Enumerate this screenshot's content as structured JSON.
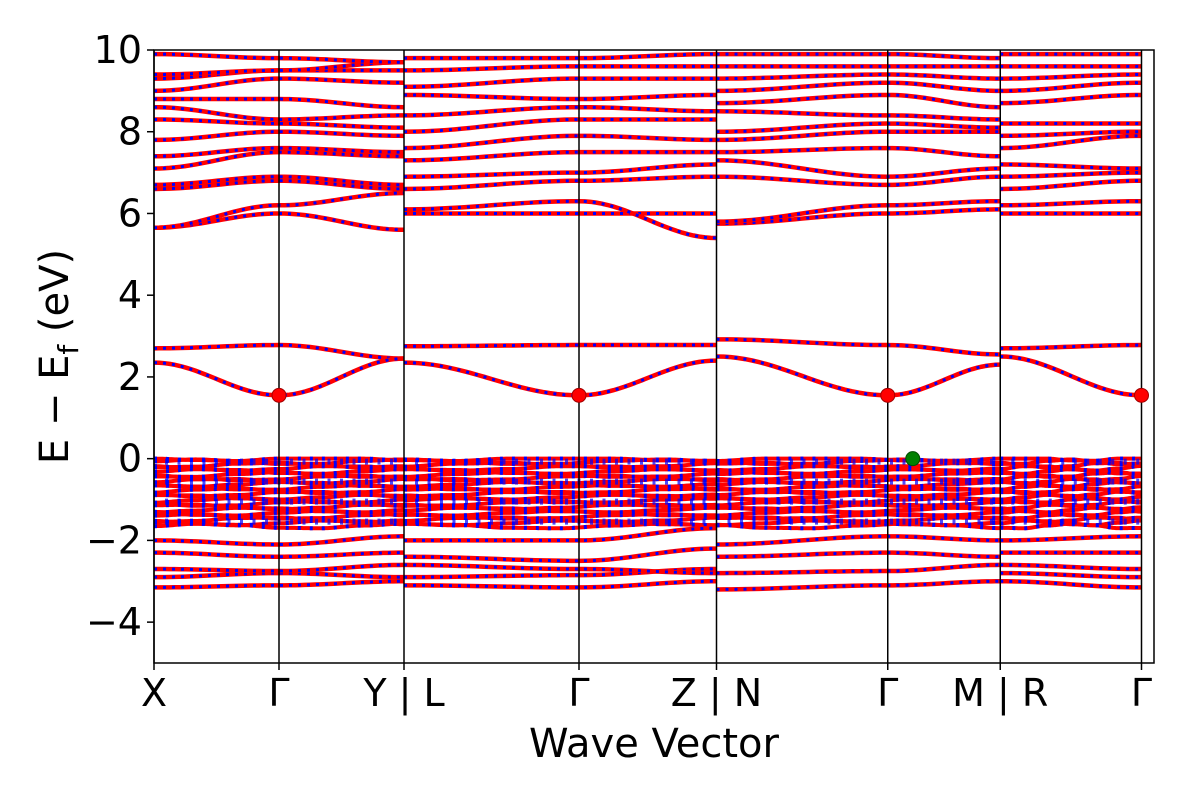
{
  "chart_data": {
    "type": "line",
    "xlabel": "Wave Vector",
    "ylabel_main": "E − E",
    "ylabel_sub": "f",
    "ylabel_unit": " (eV)",
    "ylim": [
      -5,
      10
    ],
    "yticks": [
      {
        "value": 10,
        "label": "10"
      },
      {
        "value": 8,
        "label": "8"
      },
      {
        "value": 6,
        "label": "6"
      },
      {
        "value": 4,
        "label": "4"
      },
      {
        "value": 2,
        "label": "2"
      },
      {
        "value": 0,
        "label": "0"
      },
      {
        "value": -2,
        "label": "−2"
      },
      {
        "value": -4,
        "label": "−4"
      }
    ],
    "xlim": [
      0,
      8
    ],
    "high_symmetry_points": [
      {
        "x": 0,
        "label": "X"
      },
      {
        "x": 1,
        "label": "Γ"
      },
      {
        "x": 2,
        "label": "Y | L"
      },
      {
        "x": 3.4,
        "label": "Γ"
      },
      {
        "x": 4.5,
        "label": "Z | N"
      },
      {
        "x": 5.87,
        "label": "Γ"
      },
      {
        "x": 6.77,
        "label": "M | R"
      },
      {
        "x": 7.9,
        "label": "Γ"
      }
    ],
    "band_colors": {
      "spin_up": "#ff0000",
      "spin_down": "#0000ff"
    },
    "segments": [
      {
        "x": [
          0,
          1,
          2
        ],
        "bands": [
          [
            5.65,
            6.0,
            5.6
          ],
          [
            5.65,
            6.2,
            6.5
          ],
          [
            6.6,
            6.8,
            6.6
          ],
          [
            6.7,
            6.9,
            6.7
          ],
          [
            7.1,
            7.5,
            7.4
          ],
          [
            7.4,
            7.6,
            7.5
          ],
          [
            7.8,
            8.0,
            7.9
          ],
          [
            8.3,
            8.2,
            8.1
          ],
          [
            8.6,
            8.3,
            8.4
          ],
          [
            8.8,
            8.8,
            8.6
          ],
          [
            9.0,
            9.3,
            9.2
          ],
          [
            9.3,
            9.5,
            9.5
          ],
          [
            9.4,
            9.5,
            9.7
          ],
          [
            9.9,
            9.8,
            9.7
          ],
          [
            2.7,
            2.78,
            2.45
          ],
          [
            2.35,
            1.55,
            2.45
          ],
          [
            -3.15,
            -3.1,
            -3.0
          ],
          [
            -2.9,
            -2.8,
            -2.9
          ],
          [
            -2.7,
            -2.75,
            -2.6
          ],
          [
            -2.3,
            -2.4,
            -2.3
          ],
          [
            -2.0,
            -2.1,
            -1.9
          ]
        ]
      },
      {
        "x": [
          2,
          3.4,
          4.5
        ],
        "bands": [
          [
            6.0,
            6.0,
            6.0
          ],
          [
            6.1,
            6.3,
            5.4
          ],
          [
            6.6,
            6.8,
            6.9
          ],
          [
            6.9,
            7.0,
            7.2
          ],
          [
            7.3,
            7.5,
            7.5
          ],
          [
            7.6,
            7.9,
            7.8
          ],
          [
            8.0,
            8.3,
            8.3
          ],
          [
            8.4,
            8.6,
            8.5
          ],
          [
            8.9,
            8.8,
            8.9
          ],
          [
            9.1,
            9.3,
            9.3
          ],
          [
            9.5,
            9.6,
            9.6
          ],
          [
            9.8,
            9.8,
            9.9
          ],
          [
            2.75,
            2.78,
            2.78
          ],
          [
            2.35,
            1.55,
            2.4
          ],
          [
            -3.1,
            -3.15,
            -3.0
          ],
          [
            -2.9,
            -2.85,
            -2.7
          ],
          [
            -2.6,
            -2.7,
            -2.8
          ],
          [
            -2.4,
            -2.5,
            -2.2
          ],
          [
            -2.0,
            -2.0,
            -1.7
          ]
        ]
      },
      {
        "x": [
          4.5,
          5.87,
          6.77
        ],
        "bands": [
          [
            5.75,
            6.0,
            6.1
          ],
          [
            5.8,
            6.2,
            6.3
          ],
          [
            6.9,
            6.7,
            6.9
          ],
          [
            7.3,
            6.9,
            7.1
          ],
          [
            7.5,
            7.6,
            7.4
          ],
          [
            7.8,
            8.0,
            8.0
          ],
          [
            8.0,
            8.2,
            8.1
          ],
          [
            8.5,
            8.4,
            8.3
          ],
          [
            8.7,
            8.9,
            8.6
          ],
          [
            9.0,
            9.2,
            9.0
          ],
          [
            9.3,
            9.4,
            9.3
          ],
          [
            9.6,
            9.6,
            9.6
          ],
          [
            9.9,
            9.9,
            9.8
          ],
          [
            2.92,
            2.78,
            2.55
          ],
          [
            2.5,
            1.55,
            2.3
          ],
          [
            -3.2,
            -3.1,
            -3.0
          ],
          [
            -2.8,
            -2.75,
            -2.6
          ],
          [
            -2.4,
            -2.3,
            -2.4
          ],
          [
            -2.1,
            -1.9,
            -2.0
          ]
        ]
      },
      {
        "x": [
          6.77,
          7.9
        ],
        "bands": [
          [
            6.0,
            6.0
          ],
          [
            6.2,
            6.3
          ],
          [
            6.6,
            6.8
          ],
          [
            6.9,
            7.0
          ],
          [
            7.2,
            7.1
          ],
          [
            7.6,
            7.9
          ],
          [
            7.9,
            8.0
          ],
          [
            8.2,
            8.2
          ],
          [
            8.7,
            8.9
          ],
          [
            9.0,
            9.2
          ],
          [
            9.3,
            9.4
          ],
          [
            9.6,
            9.6
          ],
          [
            9.9,
            9.9
          ],
          [
            2.7,
            2.78
          ],
          [
            2.5,
            1.55
          ],
          [
            -3.0,
            -3.15
          ],
          [
            -2.8,
            -2.9
          ],
          [
            -2.6,
            -2.7
          ],
          [
            -2.3,
            -2.3
          ],
          [
            -2.0,
            -1.9
          ]
        ]
      }
    ],
    "valence_block": {
      "top": 0,
      "bottom": -1.65
    },
    "cbm_markers": [
      {
        "x": 1,
        "y": 1.55
      },
      {
        "x": 3.4,
        "y": 1.55
      },
      {
        "x": 5.87,
        "y": 1.55
      },
      {
        "x": 7.9,
        "y": 1.55
      }
    ],
    "vbm_marker": {
      "x": 6.07,
      "y": 0.0
    }
  }
}
